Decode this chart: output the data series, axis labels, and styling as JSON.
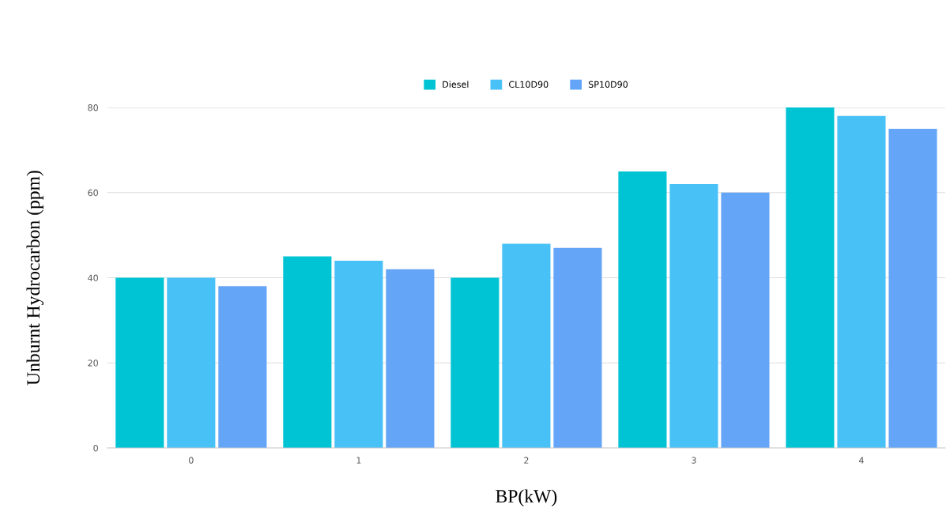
{
  "chart_data": {
    "type": "bar",
    "xlabel": "BP(kW)",
    "ylabel": "Unburnt Hydrocarbon (ppm)",
    "categories": [
      "0",
      "1",
      "2",
      "3",
      "4"
    ],
    "series": [
      {
        "name": "Diesel",
        "color": "#00c4d4",
        "values": [
          40,
          45,
          40,
          65,
          80
        ]
      },
      {
        "name": "CL10D90",
        "color": "#48c1f7",
        "values": [
          40,
          44,
          48,
          62,
          78
        ]
      },
      {
        "name": "SP10D90",
        "color": "#64a5f7",
        "values": [
          38,
          42,
          47,
          60,
          75
        ]
      }
    ],
    "ylim": [
      0,
      80
    ],
    "yticks": [
      0,
      20,
      40,
      60,
      80
    ],
    "grid": "y",
    "legend": "top"
  }
}
